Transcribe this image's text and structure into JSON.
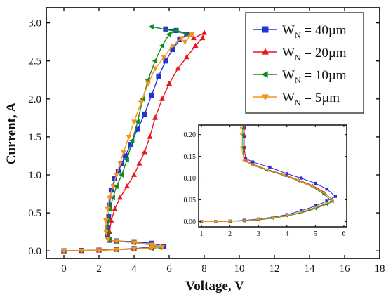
{
  "chart_data": [
    {
      "id": "main",
      "type": "scatter",
      "title": "",
      "xlabel": "Voltage, V",
      "ylabel": "Current, A",
      "xlim": [
        -1,
        18
      ],
      "ylim": [
        -0.1,
        3.2
      ],
      "xticks": [
        0,
        2,
        4,
        6,
        8,
        10,
        12,
        14,
        16,
        18
      ],
      "yticks": [
        0.0,
        0.5,
        1.0,
        1.5,
        2.0,
        2.5,
        3.0
      ],
      "ytick_labels": [
        "0.0",
        "0.5",
        "1.0",
        "1.5",
        "2.0",
        "2.5",
        "3.0"
      ],
      "legend": {
        "position": "top-right",
        "entries": [
          {
            "label": "W",
            "sub": "N",
            "suffix": " = 40µm"
          },
          {
            "label": "W",
            "sub": "N",
            "suffix": " = 20µm"
          },
          {
            "label": "W",
            "sub": "N",
            "suffix": " = 10µm"
          },
          {
            "label": "W",
            "sub": "N",
            "suffix": " = 5µm"
          }
        ]
      },
      "series": [
        {
          "name": "WN = 40µm",
          "color": "#1f35d6",
          "marker": "square",
          "points": [
            [
              0,
              0.0
            ],
            [
              1,
              0.005
            ],
            [
              2,
              0.01
            ],
            [
              3,
              0.02
            ],
            [
              4,
              0.03
            ],
            [
              5,
              0.05
            ],
            [
              5.7,
              0.06
            ],
            [
              5,
              0.1
            ],
            [
              4,
              0.12
            ],
            [
              3,
              0.13
            ],
            [
              2.6,
              0.14
            ],
            [
              2.5,
              0.2
            ],
            [
              2.5,
              0.3
            ],
            [
              2.55,
              0.45
            ],
            [
              2.6,
              0.6
            ],
            [
              2.7,
              0.8
            ],
            [
              2.9,
              0.95
            ],
            [
              3.1,
              1.05
            ],
            [
              3.3,
              1.15
            ],
            [
              3.5,
              1.25
            ],
            [
              3.8,
              1.4
            ],
            [
              4.2,
              1.6
            ],
            [
              4.6,
              1.8
            ],
            [
              5.0,
              2.05
            ],
            [
              5.4,
              2.3
            ],
            [
              5.8,
              2.5
            ],
            [
              6.2,
              2.65
            ],
            [
              6.6,
              2.78
            ],
            [
              7.0,
              2.85
            ],
            [
              6.4,
              2.9
            ],
            [
              5.8,
              2.92
            ]
          ]
        },
        {
          "name": "WN = 20µm",
          "color": "#e8151b",
          "marker": "triangle-up",
          "points": [
            [
              0,
              0.0
            ],
            [
              1,
              0.004
            ],
            [
              2,
              0.008
            ],
            [
              3,
              0.015
            ],
            [
              4,
              0.025
            ],
            [
              5,
              0.04
            ],
            [
              5.6,
              0.05
            ],
            [
              5,
              0.08
            ],
            [
              4,
              0.11
            ],
            [
              3,
              0.13
            ],
            [
              2.6,
              0.15
            ],
            [
              2.6,
              0.25
            ],
            [
              2.7,
              0.4
            ],
            [
              2.9,
              0.55
            ],
            [
              3.2,
              0.7
            ],
            [
              3.6,
              0.85
            ],
            [
              4.0,
              1.0
            ],
            [
              4.3,
              1.15
            ],
            [
              4.6,
              1.3
            ],
            [
              4.9,
              1.5
            ],
            [
              5.2,
              1.75
            ],
            [
              5.6,
              2.0
            ],
            [
              6.0,
              2.2
            ],
            [
              6.5,
              2.4
            ],
            [
              7.0,
              2.55
            ],
            [
              7.5,
              2.7
            ],
            [
              7.9,
              2.8
            ],
            [
              8.0,
              2.87
            ],
            [
              7.4,
              2.8
            ]
          ]
        },
        {
          "name": "WN = 10µm",
          "color": "#0d8a25",
          "marker": "triangle-left",
          "points": [
            [
              0,
              0.0
            ],
            [
              1,
              0.004
            ],
            [
              2,
              0.008
            ],
            [
              3,
              0.015
            ],
            [
              4,
              0.025
            ],
            [
              5,
              0.035
            ],
            [
              5.5,
              0.045
            ],
            [
              5,
              0.08
            ],
            [
              4,
              0.11
            ],
            [
              3,
              0.13
            ],
            [
              2.6,
              0.15
            ],
            [
              2.5,
              0.25
            ],
            [
              2.5,
              0.4
            ],
            [
              2.6,
              0.55
            ],
            [
              2.8,
              0.7
            ],
            [
              3.0,
              0.85
            ],
            [
              3.3,
              1.0
            ],
            [
              3.6,
              1.2
            ],
            [
              3.9,
              1.45
            ],
            [
              4.2,
              1.7
            ],
            [
              4.5,
              2.0
            ],
            [
              4.8,
              2.25
            ],
            [
              5.2,
              2.5
            ],
            [
              5.6,
              2.7
            ],
            [
              6.0,
              2.85
            ],
            [
              6.4,
              2.9
            ],
            [
              7.2,
              2.85
            ],
            [
              5.0,
              2.95
            ]
          ]
        },
        {
          "name": "WN = 5µm",
          "color": "#f7931a",
          "marker": "triangle-down",
          "points": [
            [
              0,
              0.0
            ],
            [
              1,
              0.004
            ],
            [
              2,
              0.008
            ],
            [
              3,
              0.015
            ],
            [
              4,
              0.025
            ],
            [
              5,
              0.04
            ],
            [
              5.6,
              0.05
            ],
            [
              5,
              0.08
            ],
            [
              4,
              0.11
            ],
            [
              3,
              0.13
            ],
            [
              2.5,
              0.15
            ],
            [
              2.4,
              0.25
            ],
            [
              2.4,
              0.4
            ],
            [
              2.5,
              0.55
            ],
            [
              2.6,
              0.7
            ],
            [
              2.8,
              0.85
            ],
            [
              3.0,
              1.0
            ],
            [
              3.2,
              1.15
            ],
            [
              3.4,
              1.3
            ],
            [
              3.7,
              1.5
            ],
            [
              4.0,
              1.7
            ],
            [
              4.4,
              1.95
            ],
            [
              4.8,
              2.2
            ],
            [
              5.2,
              2.4
            ],
            [
              5.7,
              2.55
            ],
            [
              6.2,
              2.7
            ],
            [
              6.7,
              2.8
            ],
            [
              7.3,
              2.85
            ],
            [
              6.9,
              2.75
            ]
          ]
        }
      ]
    },
    {
      "id": "inset",
      "type": "line",
      "title": "",
      "xlabel": "",
      "ylabel": "",
      "xlim": [
        0.9,
        6.1
      ],
      "ylim": [
        -0.012,
        0.222
      ],
      "xticks": [
        1,
        2,
        3,
        4,
        5,
        6
      ],
      "yticks": [
        0.0,
        0.05,
        0.1,
        0.15,
        0.2
      ],
      "ytick_labels": [
        "0.00",
        "0.05",
        "0.10",
        "0.15",
        "0.20"
      ],
      "series": [
        {
          "name": "WN = 40µm",
          "color": "#1f35d6",
          "marker": "square",
          "points": [
            [
              1.0,
              0.0
            ],
            [
              1.5,
              0.0
            ],
            [
              2.0,
              0.001
            ],
            [
              2.5,
              0.003
            ],
            [
              3.0,
              0.006
            ],
            [
              3.5,
              0.01
            ],
            [
              4.0,
              0.016
            ],
            [
              4.5,
              0.025
            ],
            [
              5.0,
              0.036
            ],
            [
              5.4,
              0.047
            ],
            [
              5.7,
              0.058
            ],
            [
              5.4,
              0.075
            ],
            [
              5.0,
              0.088
            ],
            [
              4.5,
              0.1
            ],
            [
              4.0,
              0.11
            ],
            [
              3.4,
              0.125
            ],
            [
              2.8,
              0.137
            ],
            [
              2.55,
              0.145
            ],
            [
              2.5,
              0.17
            ],
            [
              2.5,
              0.195
            ],
            [
              2.5,
              0.215
            ]
          ]
        },
        {
          "name": "WN = 20µm",
          "color": "#e8151b",
          "marker": "triangle-up",
          "points": [
            [
              1.0,
              0.0
            ],
            [
              1.5,
              0.0
            ],
            [
              2.0,
              0.001
            ],
            [
              2.5,
              0.002
            ],
            [
              3.0,
              0.005
            ],
            [
              3.5,
              0.009
            ],
            [
              4.0,
              0.014
            ],
            [
              4.5,
              0.021
            ],
            [
              5.0,
              0.032
            ],
            [
              5.4,
              0.042
            ],
            [
              5.6,
              0.05
            ],
            [
              5.3,
              0.068
            ],
            [
              4.9,
              0.083
            ],
            [
              4.4,
              0.096
            ],
            [
              3.9,
              0.108
            ],
            [
              3.3,
              0.12
            ],
            [
              2.8,
              0.132
            ],
            [
              2.55,
              0.142
            ],
            [
              2.5,
              0.17
            ],
            [
              2.5,
              0.2
            ],
            [
              2.5,
              0.215
            ]
          ]
        },
        {
          "name": "WN = 10µm",
          "color": "#0d8a25",
          "marker": "triangle-left",
          "points": [
            [
              1.0,
              0.0
            ],
            [
              1.5,
              0.0
            ],
            [
              2.0,
              0.001
            ],
            [
              2.5,
              0.002
            ],
            [
              3.0,
              0.004
            ],
            [
              3.5,
              0.008
            ],
            [
              4.0,
              0.013
            ],
            [
              4.5,
              0.02
            ],
            [
              5.0,
              0.03
            ],
            [
              5.4,
              0.04
            ],
            [
              5.6,
              0.046
            ],
            [
              5.3,
              0.063
            ],
            [
              4.9,
              0.08
            ],
            [
              4.4,
              0.094
            ],
            [
              3.9,
              0.106
            ],
            [
              3.3,
              0.118
            ],
            [
              2.8,
              0.13
            ],
            [
              2.5,
              0.14
            ],
            [
              2.45,
              0.17
            ],
            [
              2.45,
              0.2
            ],
            [
              2.45,
              0.215
            ]
          ]
        },
        {
          "name": "WN = 5µm",
          "color": "#f7931a",
          "marker": "triangle-down",
          "points": [
            [
              1.0,
              0.0
            ],
            [
              1.5,
              0.0
            ],
            [
              2.0,
              0.001
            ],
            [
              2.5,
              0.002
            ],
            [
              3.0,
              0.005
            ],
            [
              3.5,
              0.009
            ],
            [
              4.0,
              0.014
            ],
            [
              4.5,
              0.022
            ],
            [
              5.0,
              0.033
            ],
            [
              5.4,
              0.043
            ],
            [
              5.6,
              0.05
            ],
            [
              5.3,
              0.066
            ],
            [
              4.9,
              0.081
            ],
            [
              4.4,
              0.095
            ],
            [
              3.9,
              0.107
            ],
            [
              3.3,
              0.119
            ],
            [
              2.8,
              0.131
            ],
            [
              2.5,
              0.14
            ],
            [
              2.4,
              0.17
            ],
            [
              2.4,
              0.2
            ],
            [
              2.4,
              0.215
            ]
          ]
        }
      ]
    }
  ]
}
